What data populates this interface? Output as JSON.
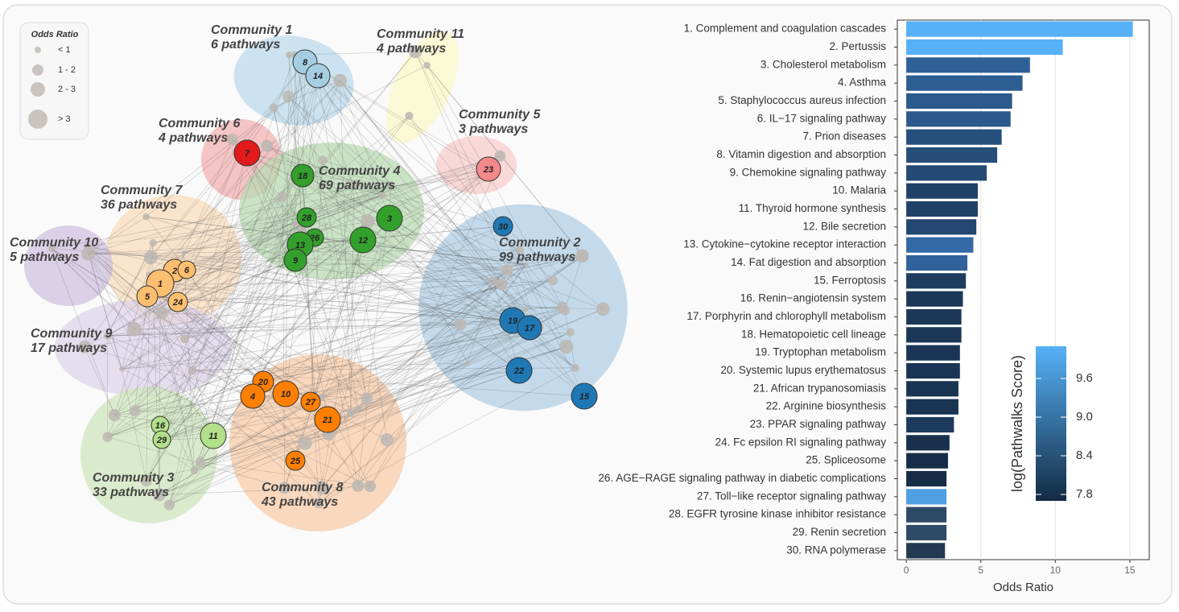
{
  "network": {
    "legend": {
      "title": "Odds Ratio",
      "entries": [
        "< 1",
        "1 - 2",
        "2 - 3",
        "> 3"
      ]
    },
    "communities": [
      {
        "name": "Community 1",
        "subtitle": "6 pathways"
      },
      {
        "name": "Community 11",
        "subtitle": "4 pathways"
      },
      {
        "name": "Community 6",
        "subtitle": "4 pathways"
      },
      {
        "name": "Community 5",
        "subtitle": "3 pathways"
      },
      {
        "name": "Community 4",
        "subtitle": "69 pathways"
      },
      {
        "name": "Community 7",
        "subtitle": "36 pathways"
      },
      {
        "name": "Community 10",
        "subtitle": "5 pathways"
      },
      {
        "name": "Community 9",
        "subtitle": "17 pathways"
      },
      {
        "name": "Community 2",
        "subtitle": "99 pathways"
      },
      {
        "name": "Community 3",
        "subtitle": "33 pathways"
      },
      {
        "name": "Community 8",
        "subtitle": "43 pathways"
      }
    ],
    "nodes": [
      "8",
      "14",
      "7",
      "23",
      "18",
      "28",
      "3",
      "26",
      "12",
      "13",
      "9",
      "30",
      "19",
      "17",
      "22",
      "15",
      "2",
      "6",
      "1",
      "5",
      "24",
      "16",
      "29",
      "11",
      "20",
      "4",
      "10",
      "27",
      "21",
      "25"
    ]
  },
  "chart_data": {
    "type": "bar",
    "orientation": "horizontal",
    "x_label": "Odds Ratio",
    "categories": [
      "1. Complement and coagulation cascades",
      "2. Pertussis",
      "3. Cholesterol metabolism",
      "4. Asthma",
      "5. Staphylococcus aureus infection",
      "6. IL−17 signaling pathway",
      "7. Prion diseases",
      "8. Vitamin digestion and absorption",
      "9. Chemokine signaling pathway",
      "10. Malaria",
      "11. Thyroid hormone synthesis",
      "12. Bile secretion",
      "13. Cytokine−cytokine receptor interaction",
      "14. Fat digestion and absorption",
      "15. Ferroptosis",
      "16. Renin−angiotensin system",
      "17. Porphyrin and chlorophyll metabolism",
      "18. Hematopoietic cell lineage",
      "19. Tryptophan metabolism",
      "20. Systemic lupus erythematosus",
      "21. African trypanosomiasis",
      "22. Arginine biosynthesis",
      "23. PPAR signaling pathway",
      "24. Fc epsilon RI signaling pathway",
      "25. Spliceosome",
      "26. AGE−RAGE signaling pathway in diabetic complications",
      "27. Toll−like receptor signaling pathway",
      "28. EGFR tyrosine kinase inhibitor resistance",
      "29. Renin secretion",
      "30. RNA polymerase"
    ],
    "values": [
      15.2,
      10.5,
      8.3,
      7.8,
      7.1,
      7.0,
      6.4,
      6.1,
      5.4,
      4.8,
      4.8,
      4.7,
      4.5,
      4.1,
      4.0,
      3.8,
      3.7,
      3.7,
      3.6,
      3.6,
      3.5,
      3.5,
      3.2,
      2.9,
      2.8,
      2.7,
      2.7,
      2.7,
      2.7,
      2.6
    ],
    "colors": [
      "#56b1f7",
      "#56b1f7",
      "#2f6197",
      "#2d5e92",
      "#2b5a8c",
      "#2b598b",
      "#26507c",
      "#264e79",
      "#244a73",
      "#1f4168",
      "#1f4168",
      "#234770",
      "#3369a6",
      "#30629c",
      "#1d3c60",
      "#1b3858",
      "#1b3858",
      "#1b3858",
      "#1a3555",
      "#1a3555",
      "#193453",
      "#193453",
      "#1d3b5c",
      "#18304d",
      "#172e4a",
      "#162c47",
      "#4f9fe2",
      "#2f4a66",
      "#2f4a66",
      "#233a52"
    ],
    "xlim": [
      -0.6,
      16.3
    ],
    "xticks": [
      0,
      5,
      10,
      15
    ],
    "grid": true,
    "colorbar": {
      "title": "log(Pathwalks Score)",
      "lim": [
        7.7,
        10.1
      ],
      "colors": [
        "#132b43",
        "#56b1f7"
      ],
      "ticks": [
        7.8,
        8.4,
        {
          "value": 9,
          "label": "9.0"
        },
        9.6
      ]
    }
  }
}
